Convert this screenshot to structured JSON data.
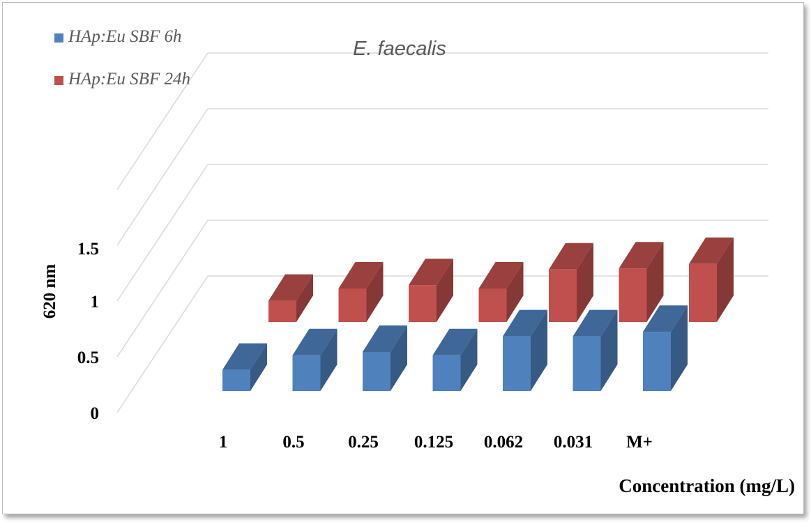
{
  "chart_data": {
    "type": "bar",
    "title": "E. faecalis",
    "xlabel": "Concentration (mg/L)",
    "ylabel": "620 nm",
    "categories": [
      "1",
      "0.5",
      "0.25",
      "0.125",
      "0.062",
      "0.031",
      "M+"
    ],
    "yticks": [
      "0",
      "0.5",
      "1",
      "1.5"
    ],
    "ylim": [
      0,
      2.5
    ],
    "grid": true,
    "legend": "top-left",
    "series": [
      {
        "name": "HAp:Eu SBF  6h",
        "color": "#4f81bd",
        "values": [
          0.19,
          0.32,
          0.35,
          0.32,
          0.49,
          0.49,
          0.53
        ]
      },
      {
        "name": "HAp:Eu SBF  24h",
        "color": "#c0504d",
        "values": [
          0.19,
          0.3,
          0.33,
          0.3,
          0.47,
          0.48,
          0.52
        ]
      }
    ]
  }
}
